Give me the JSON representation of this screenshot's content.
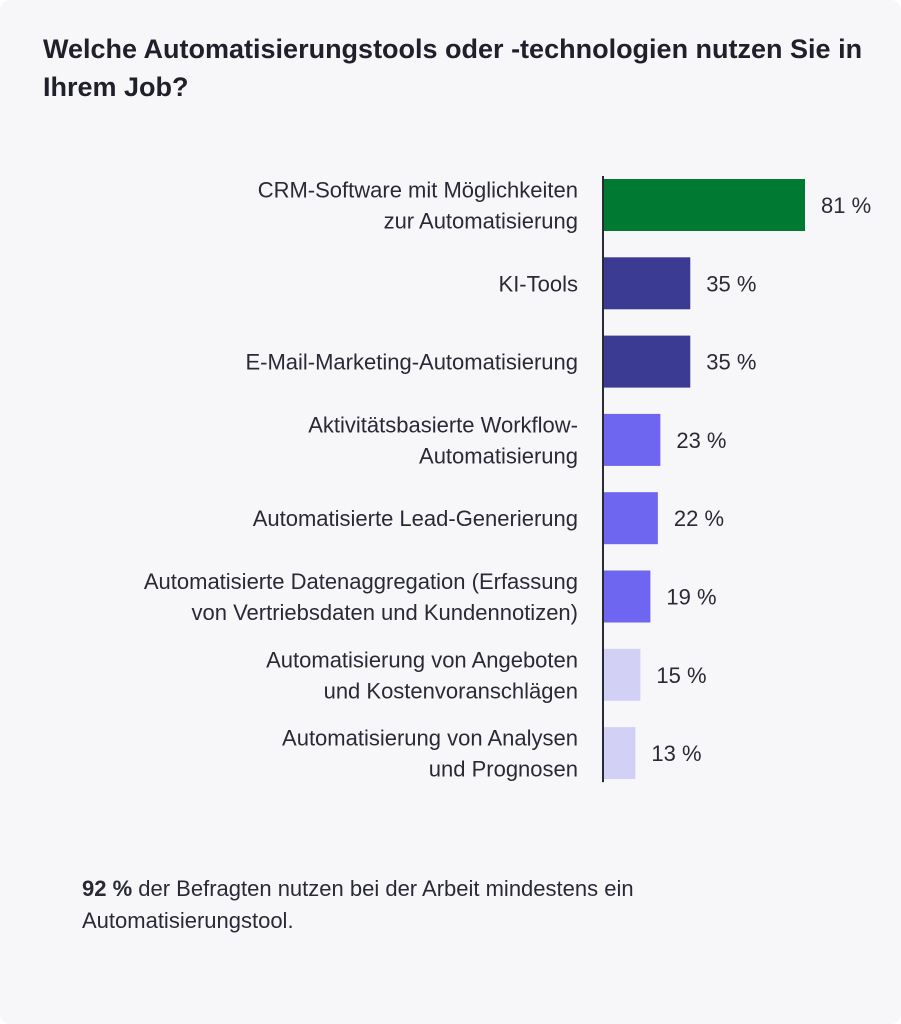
{
  "title": "Welche Automatisierungstools oder -technologien nutzen Sie in Ihrem Job?",
  "chart_data": {
    "type": "bar",
    "orientation": "horizontal",
    "title": "Welche Automatisierungstools oder -technologien nutzen Sie in Ihrem Job?",
    "xlabel": "",
    "ylabel": "",
    "xlim": [
      0,
      100
    ],
    "unit": "%",
    "categories": [
      [
        "CRM-Software mit Möglichkeiten",
        "zur Automatisierung"
      ],
      [
        "KI-Tools"
      ],
      [
        "E-Mail-Marketing-Automatisierung"
      ],
      [
        "Aktivitätsbasierte Workflow-",
        "Automatisierung"
      ],
      [
        "Automatisierte Lead-Generierung"
      ],
      [
        "Automatisierte Datenaggregation (Erfassung",
        "von Vertriebsdaten und Kundennotizen)"
      ],
      [
        "Automatisierung von Angeboten",
        "und Kostenvoranschlägen"
      ],
      [
        "Automatisierung von Analysen",
        "und Prognosen"
      ]
    ],
    "values": [
      81,
      35,
      35,
      23,
      22,
      19,
      15,
      13
    ],
    "value_labels": [
      "81 %",
      "35 %",
      "35 %",
      "23 %",
      "22 %",
      "19 %",
      "15 %",
      "13 %"
    ],
    "colors": [
      "#007a33",
      "#3b3b94",
      "#3b3b94",
      "#6e66f0",
      "#6e66f0",
      "#6e66f0",
      "#d2d1f5",
      "#d2d1f5"
    ],
    "axis_color": "#2a2a36",
    "grid": false,
    "legend": "none"
  },
  "footnote": {
    "bold": "92 %",
    "text": " der Befragten nutzen bei der Arbeit mindestens ein Automatisierungstool."
  }
}
